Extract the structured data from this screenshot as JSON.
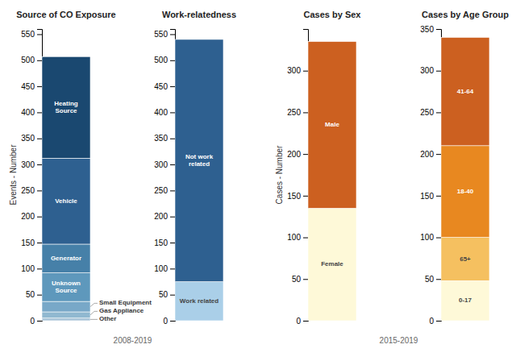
{
  "chart_data": [
    {
      "type": "bar",
      "stacked": true,
      "title": "Source of CO Exposure",
      "ylabel": "Events - Number",
      "categories": [
        null
      ],
      "series": [
        {
          "name": "Other",
          "color": "#a8c4d8",
          "values": [
            5
          ]
        },
        {
          "name": "Gas Appliance",
          "color": "#90b8d0",
          "values": [
            12
          ]
        },
        {
          "name": "Small Equipment",
          "color": "#78a8c8",
          "values": [
            20
          ]
        },
        {
          "name": "Unknown Source",
          "color": "#5e98bc",
          "values": [
            55
          ]
        },
        {
          "name": "Generator",
          "color": "#4680a8",
          "values": [
            55
          ]
        },
        {
          "name": "Vehicle",
          "color": "#2e6090",
          "values": [
            165
          ]
        },
        {
          "name": "Heating Source",
          "color": "#1a4870",
          "values": [
            195
          ]
        }
      ],
      "ylim": [
        0,
        560
      ],
      "yticks": [
        0,
        50,
        100,
        150,
        200,
        250,
        300,
        350,
        400,
        450,
        500,
        550
      ],
      "grid": false,
      "tick_labels": "y",
      "annotations": [
        "2008-2019"
      ]
    },
    {
      "type": "bar",
      "stacked": true,
      "title": "Work-relatedness",
      "categories": [
        null
      ],
      "series": [
        {
          "name": "Work related",
          "color": "#aacfe8",
          "values": [
            75
          ]
        },
        {
          "name": "Not work related",
          "color": "#2e6090",
          "values": [
            465
          ]
        }
      ],
      "ylim": [
        0,
        560
      ],
      "yticks": [
        0,
        50,
        100,
        150,
        200,
        250,
        300,
        350,
        400,
        450,
        500,
        550
      ],
      "grid": false,
      "tick_labels": "y"
    },
    {
      "type": "bar",
      "stacked": true,
      "title": "Cases by Sex",
      "ylabel": "Cases - Number",
      "categories": [
        null
      ],
      "series": [
        {
          "name": "Female",
          "color": "#fef9d8",
          "values": [
            135
          ]
        },
        {
          "name": "Male",
          "color": "#cc6020",
          "values": [
            200
          ]
        }
      ],
      "ylim": [
        0,
        350
      ],
      "yticks": [
        0,
        50,
        100,
        150,
        200,
        250,
        300
      ],
      "grid": false,
      "tick_labels": "y",
      "annotations": [
        "2015-2019"
      ]
    },
    {
      "type": "bar",
      "stacked": true,
      "title": "Cases by Age Group",
      "categories": [
        null
      ],
      "series": [
        {
          "name": "0-17",
          "color": "#fef9d8",
          "values": [
            48
          ]
        },
        {
          "name": "65+",
          "color": "#f5c060",
          "values": [
            52
          ]
        },
        {
          "name": "18-40",
          "color": "#e88820",
          "values": [
            110
          ]
        },
        {
          "name": "41-64",
          "color": "#cc6020",
          "values": [
            130
          ]
        }
      ],
      "ylim": [
        0,
        350
      ],
      "yticks": [
        0,
        50,
        100,
        150,
        200,
        250,
        300,
        350
      ],
      "grid": false,
      "tick_labels": "y"
    }
  ]
}
